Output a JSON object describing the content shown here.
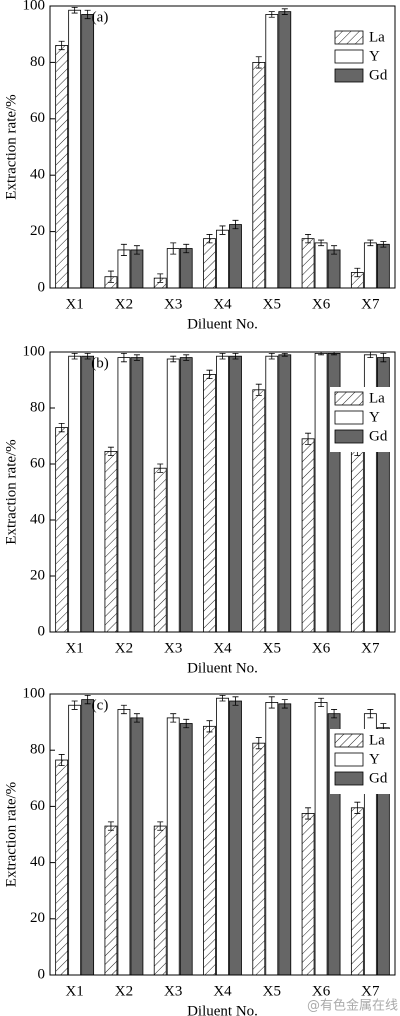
{
  "chart_data": [
    {
      "type": "bar",
      "panel_label": "(a)",
      "x_label": "Diluent No.",
      "y_label": "Extraction rate/%",
      "categories": [
        "X1",
        "X2",
        "X3",
        "X4",
        "X5",
        "X6",
        "X7"
      ],
      "series": [
        {
          "name": "La",
          "color": "#ffffff",
          "hatch": true,
          "values": [
            86,
            4,
            3.5,
            17.5,
            80,
            17.5,
            5.5
          ],
          "errors": [
            1.5,
            2,
            1.5,
            1.5,
            2,
            1.5,
            1.5
          ]
        },
        {
          "name": "Y",
          "color": "#ffffff",
          "hatch": false,
          "values": [
            98.5,
            13.5,
            14,
            20.5,
            97,
            16,
            16
          ],
          "errors": [
            1,
            2,
            2,
            1.5,
            1,
            1,
            1
          ]
        },
        {
          "name": "Gd",
          "color": "#666666",
          "hatch": false,
          "values": [
            97,
            13.5,
            14,
            22.5,
            98,
            13.5,
            15.5
          ],
          "errors": [
            1.5,
            1.5,
            1.5,
            1.5,
            1,
            1.5,
            1
          ]
        }
      ],
      "ylim": [
        0,
        100
      ],
      "yticks": [
        0,
        20,
        40,
        60,
        80,
        100
      ],
      "legend": "upper right"
    },
    {
      "type": "bar",
      "panel_label": "(b)",
      "x_label": "Diluent No.",
      "y_label": "Extraction rate/%",
      "categories": [
        "X1",
        "X2",
        "X3",
        "X4",
        "X5",
        "X6",
        "X7"
      ],
      "series": [
        {
          "name": "La",
          "color": "#ffffff",
          "hatch": true,
          "values": [
            73,
            64.5,
            58.5,
            92,
            86.5,
            69,
            64.5
          ],
          "errors": [
            1.5,
            1.5,
            1.5,
            1.5,
            2,
            2,
            1.5
          ]
        },
        {
          "name": "Y",
          "color": "#ffffff",
          "hatch": false,
          "values": [
            98.5,
            98,
            97.5,
            98.5,
            98.5,
            99.5,
            99
          ],
          "errors": [
            1,
            1.5,
            1,
            1,
            1,
            0.5,
            1
          ]
        },
        {
          "name": "Gd",
          "color": "#666666",
          "hatch": false,
          "values": [
            98.5,
            98,
            98,
            98.5,
            99,
            99.5,
            98
          ],
          "errors": [
            1,
            1,
            1,
            1,
            0.5,
            0.5,
            1.5
          ]
        }
      ],
      "ylim": [
        0,
        100
      ],
      "yticks": [
        0,
        20,
        40,
        60,
        80,
        100
      ],
      "legend": "upper right"
    },
    {
      "type": "bar",
      "panel_label": "(c)",
      "x_label": "Diluent No.",
      "y_label": "Extraction rate/%",
      "categories": [
        "X1",
        "X2",
        "X3",
        "X4",
        "X5",
        "X6",
        "X7"
      ],
      "series": [
        {
          "name": "La",
          "color": "#ffffff",
          "hatch": true,
          "values": [
            76.5,
            53,
            53,
            88.5,
            82.5,
            57.5,
            59.5
          ],
          "errors": [
            2,
            1.5,
            1.5,
            2,
            2,
            2,
            2
          ]
        },
        {
          "name": "Y",
          "color": "#ffffff",
          "hatch": false,
          "values": [
            96,
            94.5,
            91.5,
            98.5,
            97,
            97,
            93
          ],
          "errors": [
            1.5,
            1.5,
            1.5,
            1,
            2,
            1.5,
            1.5
          ]
        },
        {
          "name": "Gd",
          "color": "#666666",
          "hatch": false,
          "values": [
            98,
            91.5,
            89.5,
            97.5,
            96.5,
            93,
            88
          ],
          "errors": [
            1.5,
            1.5,
            1.5,
            1.5,
            1.5,
            1.5,
            1.5
          ]
        }
      ],
      "ylim": [
        0,
        100
      ],
      "yticks": [
        0,
        20,
        40,
        60,
        80,
        100
      ],
      "legend": "upper right"
    }
  ],
  "watermark": "@有色金属在线"
}
